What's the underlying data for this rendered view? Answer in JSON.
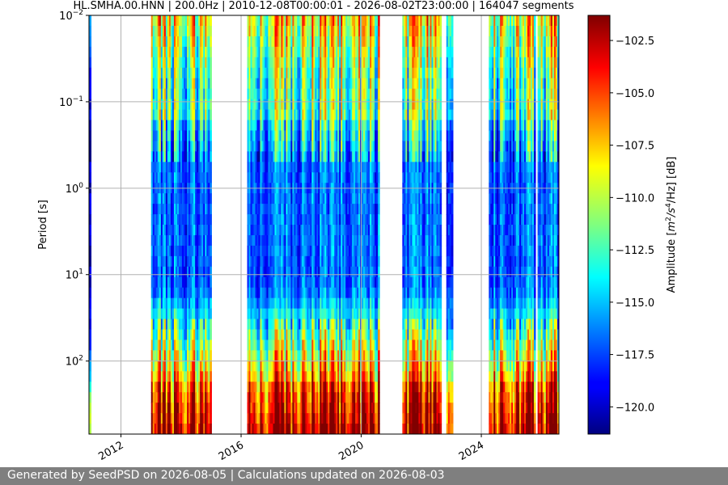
{
  "chart_data": {
    "type": "heatmap",
    "title": "HL.SMHA.00.HNN | 200.0Hz | 2010-12-08T00:00:01 - 2026-08-02T23:00:00 | 164047 segments",
    "xlabel": "",
    "ylabel": "Period [s]",
    "colorbar_label": "Amplitude [m²/s⁴/Hz] [dB]",
    "colorbar_label_parts": {
      "pre": "Amplitude [",
      "m": "m",
      "two": "2",
      "mid": "/s",
      "four": "4",
      "end": "/Hz] [dB]"
    },
    "y_scale": "log",
    "y_range": [
      0.01,
      700
    ],
    "y_inverted": true,
    "y_ticks": [
      {
        "value": 0.01,
        "base": "10",
        "exp": "−2"
      },
      {
        "value": 0.1,
        "base": "10",
        "exp": "−1"
      },
      {
        "value": 1,
        "base": "10",
        "exp": "0"
      },
      {
        "value": 10,
        "base": "10",
        "exp": "1"
      },
      {
        "value": 100,
        "base": "10",
        "exp": "2"
      }
    ],
    "x_range": [
      "2010-12-08",
      "2026-08-02"
    ],
    "x_ticks": [
      {
        "label": "2012",
        "year": 2012
      },
      {
        "label": "2016",
        "year": 2016
      },
      {
        "label": "2020",
        "year": 2020
      },
      {
        "label": "2024",
        "year": 2024
      }
    ],
    "color_range": [
      -121.3,
      -101.3
    ],
    "colorbar_ticks": [
      -102.5,
      -105.0,
      -107.5,
      -110.0,
      -112.5,
      -115.0,
      -117.5,
      -120.0
    ],
    "colorbar_tick_labels": [
      "−102.5",
      "−105.0",
      "−107.5",
      "−110.0",
      "−112.5",
      "−115.0",
      "−117.5",
      "−120.0"
    ],
    "colormap": "jet",
    "grid": true,
    "data_segments": [
      {
        "start": "2010-12-08",
        "end": "2011-01-01",
        "level": 0.35
      },
      {
        "start": "2013-01-01",
        "end": "2015-01-05",
        "level": 0.55
      },
      {
        "start": "2016-03-15",
        "end": "2020-08-10",
        "level": 0.6
      },
      {
        "start": "2021-05-15",
        "end": "2022-09-01",
        "level": 0.62
      },
      {
        "start": "2022-11-01",
        "end": "2023-01-20",
        "level": 0.5
      },
      {
        "start": "2024-04-01",
        "end": "2025-10-20",
        "level": 0.55
      },
      {
        "start": "2025-11-15",
        "end": "2026-08-02",
        "level": 0.58
      }
    ]
  },
  "footer": {
    "text": "Generated by SeedPSD on 2026-08-05 | Calculations updated on 2026-08-03"
  },
  "colors": {
    "footer_bg": "#7f7f7f",
    "grid": "#b0b0b0"
  }
}
